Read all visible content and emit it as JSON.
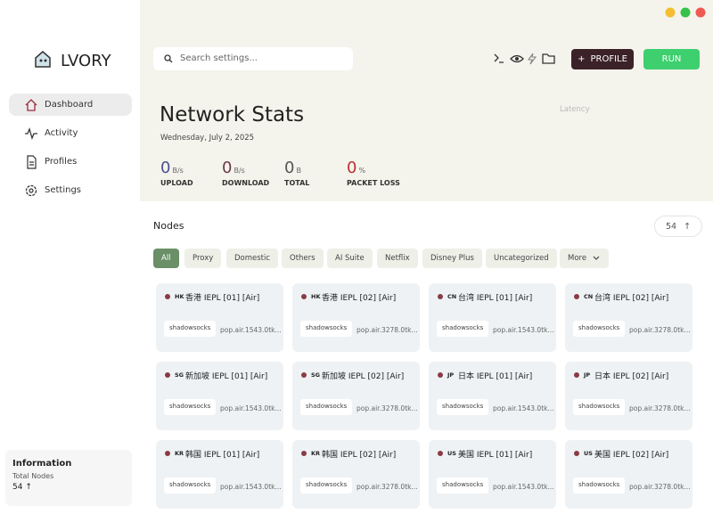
{
  "window": {
    "controls": [
      "minimize",
      "maximize",
      "close"
    ]
  },
  "app": {
    "name": "LVORY"
  },
  "nav": [
    "Dashboard",
    "Activity",
    "Profiles",
    "Settings"
  ],
  "info": {
    "title": "Information",
    "label": "Total Nodes",
    "value": "54"
  },
  "search": {
    "placeholder": "Search settings..."
  },
  "buttons": {
    "profile": "PROFILE",
    "run": "RUN"
  },
  "stats": {
    "title": "Network Stats",
    "date": "Wednesday, July 2, 2025",
    "latency_label": "Latency",
    "items": [
      {
        "value": "0",
        "unit": "B/s",
        "label": "UPLOAD",
        "color": "#4b4f8f"
      },
      {
        "value": "0",
        "unit": "B/s",
        "label": "DOWNLOAD",
        "color": "#6a3a45"
      },
      {
        "value": "0",
        "unit": "B",
        "label": "TOTAL",
        "color": "#555555"
      },
      {
        "value": "0",
        "unit": "%",
        "label": "PACKET LOSS",
        "color": "#b8322f"
      }
    ]
  },
  "nodes": {
    "title": "Nodes",
    "count": "54",
    "filters": [
      "All",
      "Proxy",
      "Domestic",
      "Others",
      "AI Suite",
      "Netflix",
      "Disney Plus",
      "Uncategorized"
    ],
    "more": "More",
    "cards": [
      {
        "flag": "HK",
        "name": "香港 IEPL [01] [Air]",
        "protocol": "shadowsocks",
        "server": "pop.air.1543.0tk..."
      },
      {
        "flag": "HK",
        "name": "香港 IEPL [02] [Air]",
        "protocol": "shadowsocks",
        "server": "pop.air.3278.0tk..."
      },
      {
        "flag": "CN",
        "name": "台湾 IEPL [01] [Air]",
        "protocol": "shadowsocks",
        "server": "pop.air.1543.0tk..."
      },
      {
        "flag": "CN",
        "name": "台湾 IEPL [02] [Air]",
        "protocol": "shadowsocks",
        "server": "pop.air.3278.0tk..."
      },
      {
        "flag": "SG",
        "name": "新加坡 IEPL [01] [Air]",
        "protocol": "shadowsocks",
        "server": "pop.air.1543.0tk..."
      },
      {
        "flag": "SG",
        "name": "新加坡 IEPL [02] [Air]",
        "protocol": "shadowsocks",
        "server": "pop.air.3278.0tk..."
      },
      {
        "flag": "JP",
        "name": "日本 IEPL [01] [Air]",
        "protocol": "shadowsocks",
        "server": "pop.air.1543.0tk..."
      },
      {
        "flag": "JP",
        "name": "日本 IEPL [02] [Air]",
        "protocol": "shadowsocks",
        "server": "pop.air.3278.0tk..."
      },
      {
        "flag": "KR",
        "name": "韩国 IEPL [01] [Air]",
        "protocol": "shadowsocks",
        "server": "pop.air.1543.0tk..."
      },
      {
        "flag": "KR",
        "name": "韩国 IEPL [02] [Air]",
        "protocol": "shadowsocks",
        "server": "pop.air.3278.0tk..."
      },
      {
        "flag": "US",
        "name": "美国 IEPL [01] [Air]",
        "protocol": "shadowsocks",
        "server": "pop.air.1543.0tk..."
      },
      {
        "flag": "US",
        "name": "美国 IEPL [02] [Air]",
        "protocol": "shadowsocks",
        "server": "pop.air.3278.0tk..."
      }
    ]
  }
}
